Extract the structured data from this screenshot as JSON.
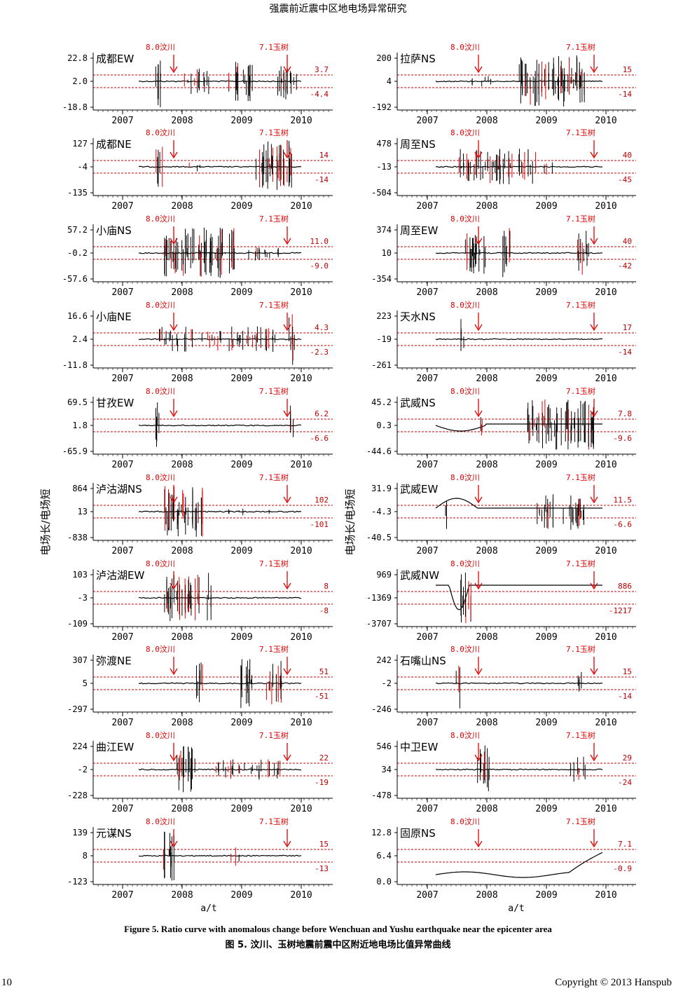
{
  "header": {
    "title": "强震前近震中区地电场异常研究"
  },
  "figure": {
    "ylabel": "电场长/电场短",
    "xlabel": "a/t",
    "quake_labels": {
      "wenchuan": "8.0汶川",
      "yushu": "7.1玉树"
    },
    "x_ticks": [
      "2007",
      "2008",
      "2009",
      "2010"
    ],
    "colors": {
      "trace": "#000000",
      "anomaly": "#e00000",
      "threshold": "#c00000",
      "marker": "#e00000",
      "axis": "#000000"
    },
    "legend": "none",
    "grid": false
  },
  "chart_data": [
    {
      "type": "line",
      "station": "成都EW",
      "yticks": [
        "22.8",
        "2.0",
        "-18.8"
      ],
      "upper": "3.7",
      "lower": "-4.4"
    },
    {
      "type": "line",
      "station": "成都NE",
      "yticks": [
        "127",
        "-4",
        "-135"
      ],
      "upper": "14",
      "lower": "-14"
    },
    {
      "type": "line",
      "station": "小庙NS",
      "yticks": [
        "57.2",
        "-0.2",
        "-57.6"
      ],
      "upper": "11.0",
      "lower": "-9.0"
    },
    {
      "type": "line",
      "station": "小庙NE",
      "yticks": [
        "16.6",
        "2.4",
        "-11.8"
      ],
      "upper": "4.3",
      "lower": "-2.3"
    },
    {
      "type": "line",
      "station": "甘孜EW",
      "yticks": [
        "69.5",
        "1.8",
        "-65.9"
      ],
      "upper": "6.2",
      "lower": "-6.6"
    },
    {
      "type": "line",
      "station": "泸沽湖NS",
      "yticks": [
        "864",
        "13",
        "-838"
      ],
      "upper": "102",
      "lower": "-101"
    },
    {
      "type": "line",
      "station": "泸沽湖EW",
      "yticks": [
        "103",
        "-3",
        "-109"
      ],
      "upper": "8",
      "lower": "-8"
    },
    {
      "type": "line",
      "station": "弥渡NE",
      "yticks": [
        "307",
        "5",
        "-297"
      ],
      "upper": "51",
      "lower": "-51"
    },
    {
      "type": "line",
      "station": "曲江EW",
      "yticks": [
        "224",
        "-2",
        "-228"
      ],
      "upper": "22",
      "lower": "-19"
    },
    {
      "type": "line",
      "station": "元谋NS",
      "yticks": [
        "139",
        "8",
        "-123"
      ],
      "upper": "15",
      "lower": "-13"
    },
    {
      "type": "line",
      "station": "拉萨NS",
      "yticks": [
        "200",
        "4",
        "-192"
      ],
      "upper": "15",
      "lower": "-14"
    },
    {
      "type": "line",
      "station": "周至NS",
      "yticks": [
        "478",
        "-13",
        "-504"
      ],
      "upper": "40",
      "lower": "-45"
    },
    {
      "type": "line",
      "station": "周至EW",
      "yticks": [
        "374",
        "10",
        "-354"
      ],
      "upper": "40",
      "lower": "-42"
    },
    {
      "type": "line",
      "station": "天水NS",
      "yticks": [
        "223",
        "-19",
        "-261"
      ],
      "upper": "17",
      "lower": "-14"
    },
    {
      "type": "line",
      "station": "武威NS",
      "yticks": [
        "45.2",
        "0.3",
        "-44.6"
      ],
      "upper": "7.8",
      "lower": "-9.6"
    },
    {
      "type": "line",
      "station": "武威EW",
      "yticks": [
        "31.9",
        "-4.3",
        "-40.5"
      ],
      "upper": "11.5",
      "lower": "-6.6"
    },
    {
      "type": "line",
      "station": "武威NW",
      "yticks": [
        "969",
        "-1369",
        "-3707"
      ],
      "upper": "886",
      "lower": "-1217"
    },
    {
      "type": "line",
      "station": "石嘴山NS",
      "yticks": [
        "242",
        "-2",
        "-246"
      ],
      "upper": "15",
      "lower": "-14"
    },
    {
      "type": "line",
      "station": "中卫EW",
      "yticks": [
        "546",
        "34",
        "-478"
      ],
      "upper": "29",
      "lower": "-24"
    },
    {
      "type": "line",
      "station": "固原NS",
      "yticks": [
        "12.8",
        "6.4",
        "0.0"
      ],
      "upper": "7.1",
      "lower": "-0.9"
    }
  ],
  "captions": {
    "en": "Figure 5. Ratio curve with anomalous change before Wenchuan and Yushu earthquake near the epicenter area",
    "zh": "图 5. 汶川、玉树地震前震中区附近地电场比值异常曲线"
  },
  "footer": {
    "page_number": "10",
    "copyright": "Copyright © 2013 Hanspub"
  }
}
